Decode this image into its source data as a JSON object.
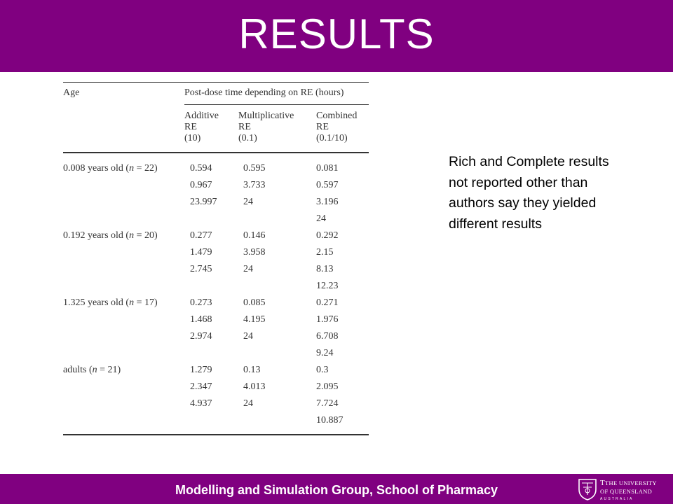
{
  "slide": {
    "title": "RESULTS",
    "footer_text": "Modelling and Simulation Group, School of Pharmacy",
    "logo": {
      "line1": "The University",
      "line2": "Of Queensland",
      "line3": "AUSTRALIA"
    },
    "side_note": "Rich and Complete results not reported other than authors say they yielded different results"
  },
  "table": {
    "header": {
      "age": "Age",
      "span": "Post-dose time depending on RE (hours)",
      "additive": [
        "Additive",
        "RE",
        "(10)"
      ],
      "multiplicative": [
        "Multiplicative",
        "RE",
        "(0.1)"
      ],
      "combined": [
        "Combined",
        "RE",
        "(0.1/10)"
      ]
    },
    "groups": [
      {
        "label": "0.008 years old (n = 22)",
        "additive": [
          "0.594",
          "0.967",
          "23.997"
        ],
        "multiplicative": [
          "0.595",
          "3.733",
          "24"
        ],
        "combined": [
          "0.081",
          "0.597",
          "3.196",
          "24"
        ]
      },
      {
        "label": "0.192 years old (n = 20)",
        "additive": [
          "0.277",
          "1.479",
          "2.745"
        ],
        "multiplicative": [
          "0.146",
          "3.958",
          "24"
        ],
        "combined": [
          "0.292",
          "2.15",
          "8.13",
          "12.23"
        ]
      },
      {
        "label": "1.325 years old (n = 17)",
        "additive": [
          "0.273",
          "1.468",
          "2.974"
        ],
        "multiplicative": [
          "0.085",
          "4.195",
          "24"
        ],
        "combined": [
          "0.271",
          "1.976",
          "6.708",
          "9.24"
        ]
      },
      {
        "label": "adults (n = 21)",
        "additive": [
          "1.279",
          "2.347",
          "4.937"
        ],
        "multiplicative": [
          "0.13",
          "4.013",
          "24"
        ],
        "combined": [
          "0.3",
          "2.095",
          "7.724",
          "10.887"
        ]
      }
    ]
  }
}
